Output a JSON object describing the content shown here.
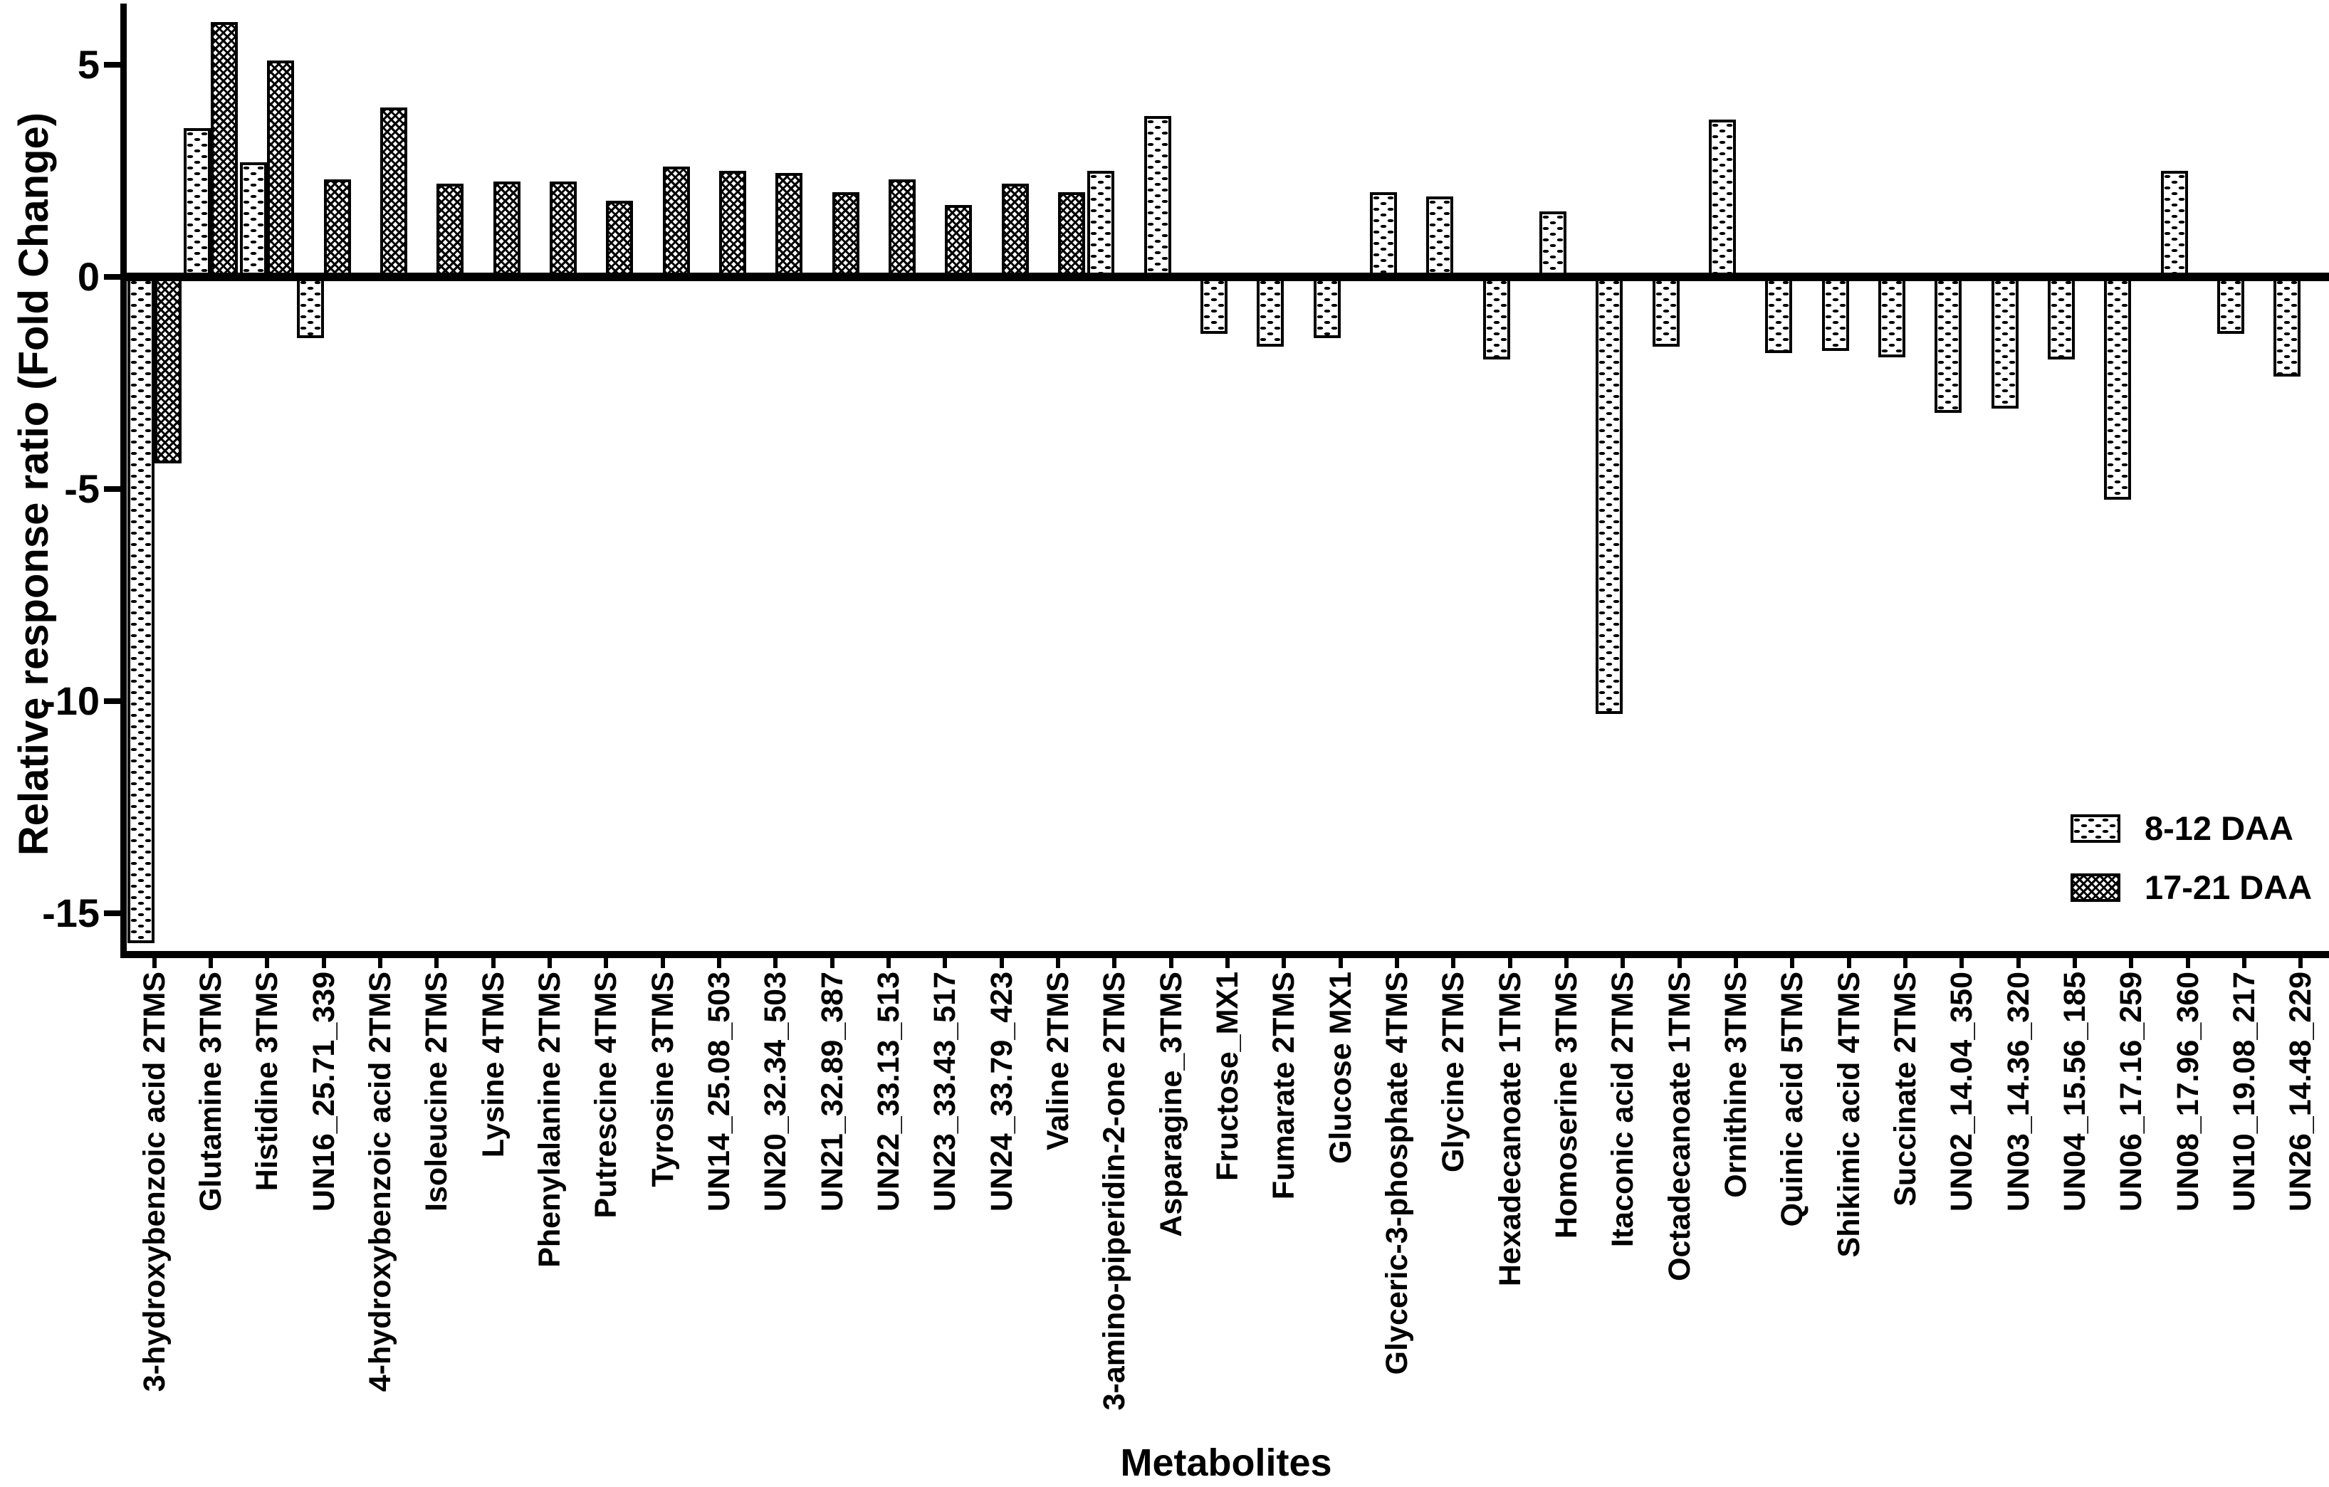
{
  "figure": {
    "y_axis_title": "Relative response ratio (Fold Change)",
    "x_axis_title": "Metabolites",
    "background_color": "#ffffff",
    "ink_color": "#000000",
    "legend": [
      {
        "label": "8-12 DAA",
        "pattern": "sparse-dots"
      },
      {
        "label": "17-21 DAA",
        "pattern": "dense-crosshatch"
      }
    ]
  },
  "chart_data": {
    "type": "bar",
    "title": "",
    "xlabel": "Metabolites",
    "ylabel": "Relative response ratio (Fold Change)",
    "ylim": [
      -16,
      6.5
    ],
    "yticks": [
      5,
      0,
      -5,
      -10,
      -15
    ],
    "grid": false,
    "legend_position": "right-middle",
    "categories": [
      "3-hydroxybenzoic acid 2TMS",
      "Glutamine 3TMS",
      "Histidine 3TMS",
      "UN16_25.71_339",
      "4-hydroxybenzoic acid 2TMS",
      "Isoleucine 2TMS",
      "Lysine 4TMS",
      "Phenylalanine 2TMS",
      "Putrescine 4TMS",
      "Tyrosine 3TMS",
      "UN14_25.08_503",
      "UN20_32.34_503",
      "UN21_32.89_387",
      "UN22_33.13_513",
      "UN23_33.43_517",
      "UN24_33.79_423",
      "Valine 2TMS",
      "3-amino-piperidin-2-one 2TMS",
      "Asparagine_3TMS",
      "Fructose_MX1",
      "Fumarate 2TMS",
      "Glucose MX1",
      "Glyceric-3-phosphate 4TMS",
      "Glycine 2TMS",
      "Hexadecanoate 1TMS",
      "Homoserine 3TMS",
      "Itaconic acid 2TMS",
      "Octadecanoate 1TMS",
      "Ornithine 3TMS",
      "Quinic acid 5TMS",
      "Shikimic acid 4TMS",
      "Succinate 2TMS",
      "UN02_14.04_350",
      "UN03_14.36_320",
      "UN04_15.56_185",
      "UN06_17.16_259",
      "UN08_17.96_360",
      "UN10_19.08_217",
      "UN26_14.48_229"
    ],
    "series": [
      {
        "name": "8-12 DAA",
        "pattern": "sparse-dots",
        "values": [
          -15.7,
          3.5,
          2.7,
          -1.45,
          null,
          null,
          null,
          null,
          null,
          null,
          null,
          null,
          null,
          null,
          null,
          null,
          null,
          2.5,
          3.8,
          -1.35,
          -1.65,
          -1.45,
          2.0,
          1.9,
          -1.95,
          1.55,
          -10.3,
          -1.65,
          3.7,
          -1.8,
          -1.75,
          -1.9,
          -3.2,
          -3.1,
          -1.95,
          -5.25,
          2.5,
          -1.35,
          -2.35
        ]
      },
      {
        "name": "17-21 DAA",
        "pattern": "dense-crosshatch",
        "values": [
          -4.4,
          6.0,
          5.1,
          2.3,
          4.0,
          2.2,
          2.25,
          2.25,
          1.8,
          2.6,
          2.5,
          2.45,
          2.0,
          2.3,
          1.7,
          2.2,
          2.0,
          null,
          null,
          null,
          null,
          null,
          null,
          null,
          null,
          null,
          null,
          null,
          null,
          null,
          null,
          null,
          null,
          null,
          null,
          null,
          null,
          null,
          null
        ]
      }
    ]
  }
}
